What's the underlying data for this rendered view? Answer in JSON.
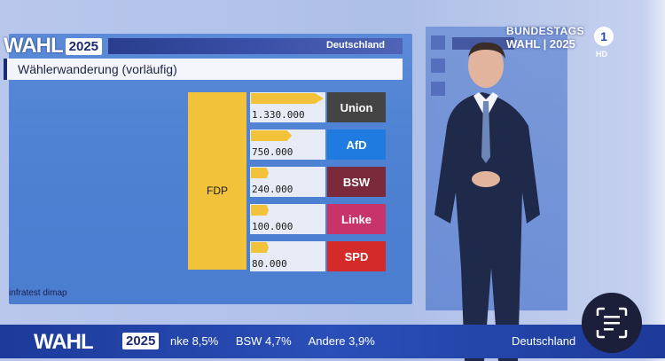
{
  "broadcast": {
    "logo_word": "WAHL",
    "logo_year": "2025",
    "region": "Deutschland",
    "brand_line1": "BUNDESTAGS",
    "brand_line2": "WAHL | 2025",
    "channel": "1",
    "channel_badge": "HD"
  },
  "panel": {
    "title": "Wählerwanderung (vorläufig)",
    "source": "infratest dimap",
    "from_party": "FDP",
    "flows": [
      {
        "value": "1.330.000",
        "party": "Union",
        "fraction": 1.0,
        "color": "#444444"
      },
      {
        "value": "750.000",
        "party": "AfD",
        "fraction": 0.564,
        "color": "#1f7be0"
      },
      {
        "value": "240.000",
        "party": "BSW",
        "fraction": 0.18,
        "color": "#7a2a3a"
      },
      {
        "value": "100.000",
        "party": "Linke",
        "fraction": 0.075,
        "color": "#c8336a"
      },
      {
        "value": "80.000",
        "party": "SPD",
        "fraction": 0.06,
        "color": "#d42a2a"
      }
    ]
  },
  "ticker": {
    "items": [
      "nke 8,5%",
      "BSW 4,7%",
      "Andere 3,9%"
    ],
    "country": "Deutschland"
  }
}
